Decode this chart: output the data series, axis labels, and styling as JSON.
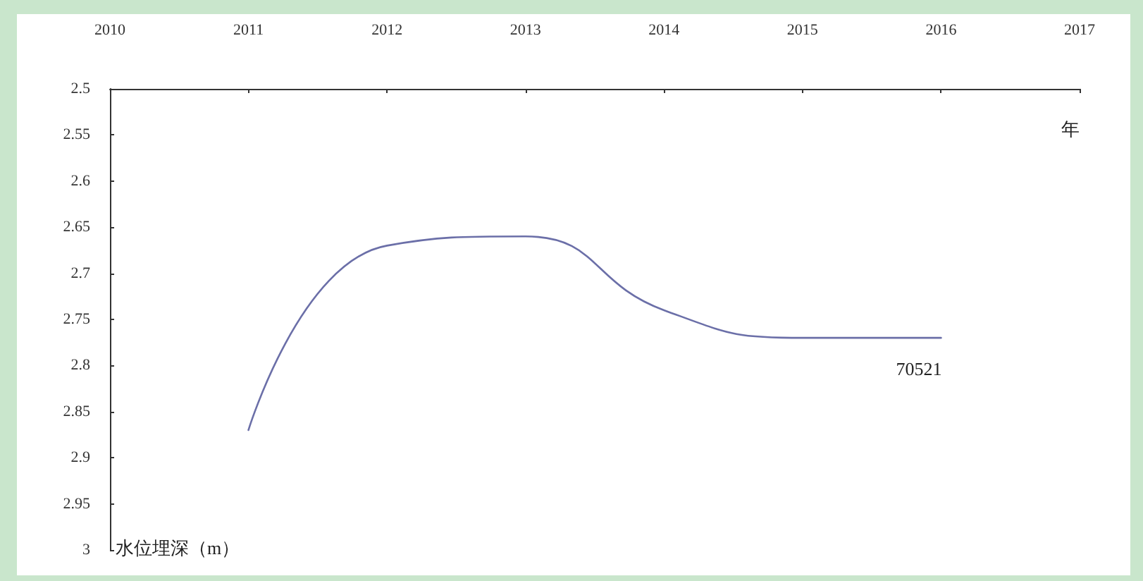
{
  "chart_data": {
    "type": "line",
    "xlabel": "年",
    "ylabel": "水位埋深（m）",
    "x": [
      2011,
      2012,
      2013,
      2014,
      2015,
      2016
    ],
    "series": [
      {
        "name": "70521",
        "color": "#6b6fa8",
        "values": [
          2.87,
          2.67,
          2.66,
          2.74,
          2.77,
          2.77
        ]
      }
    ],
    "xlim": [
      2010,
      2017
    ],
    "xticks": [
      2010,
      2011,
      2012,
      2013,
      2014,
      2015,
      2016,
      2017
    ],
    "ylim": [
      3,
      2.5
    ],
    "yticks": [
      2.5,
      2.55,
      2.6,
      2.65,
      2.7,
      2.75,
      2.8,
      2.85,
      2.9,
      2.95,
      3
    ],
    "grid": false,
    "legend": false,
    "marker": "none",
    "line_style": "solid"
  }
}
